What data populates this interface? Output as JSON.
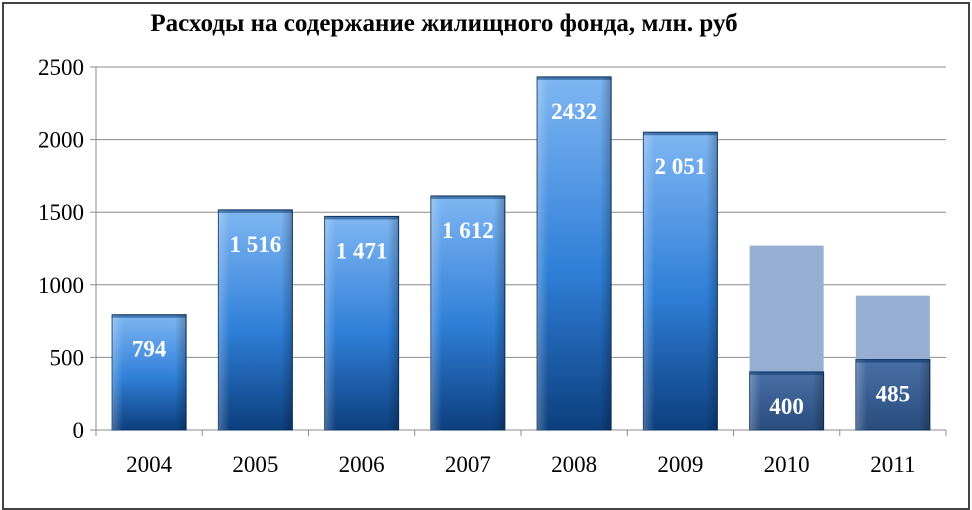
{
  "chart_data": {
    "type": "bar",
    "title": "Расходы на содержание жилищного фонда, млн. руб",
    "xlabel": "",
    "ylabel": "",
    "ylim": [
      0,
      2500
    ],
    "yticks": [
      0,
      500,
      1000,
      1500,
      2000,
      2500
    ],
    "grid": true,
    "categories": [
      "2004",
      "2005",
      "2006",
      "2007",
      "2008",
      "2009",
      "2010",
      "2011"
    ],
    "values": [
      794,
      1516,
      1471,
      1612,
      2432,
      2051,
      400,
      485
    ],
    "value_labels": [
      "794",
      "1 516",
      "1 471",
      "1 612",
      "2432",
      "2 051",
      "400",
      "485"
    ],
    "background_values": [
      null,
      null,
      null,
      null,
      null,
      null,
      1270,
      925
    ],
    "colors": {
      "bar_light": "#6aa8ee",
      "bar_dark": "#0d4a8e",
      "bar_final": "#3a5f94",
      "background_bar": "#97aed3"
    }
  }
}
